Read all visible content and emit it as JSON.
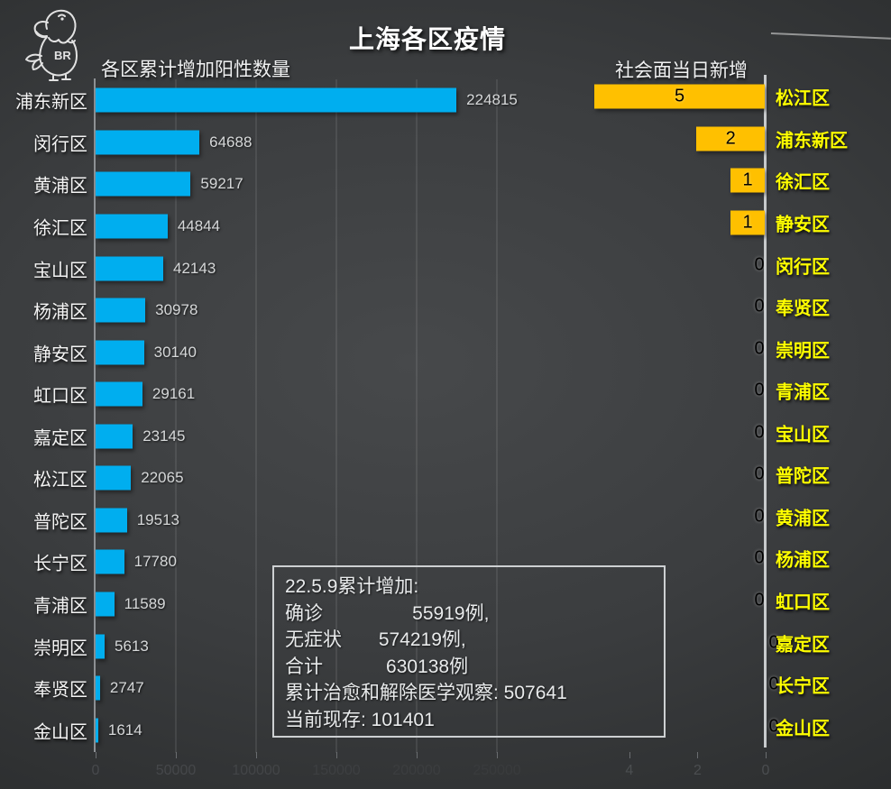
{
  "page": {
    "title": "上海各区疫情",
    "logo_text": "BR"
  },
  "info_box": {
    "lines": [
      "22.5.9累计增加:",
      "确诊                 55919例,",
      "无症状       574219例,",
      "合计            630138例",
      "累计治愈和解除医学观察: 507641",
      "当前现存: 101401"
    ]
  },
  "colors": {
    "background_dark": "#2b2d2e",
    "left_bar": "#00AEEF",
    "right_bar": "#FFC000",
    "left_label": "#F4F4F4",
    "right_label": "#FFFF00",
    "axis_line": "#C7CACC",
    "value_label_left": "#D6D8D9",
    "value_label_right": "#000000"
  },
  "chart_data": [
    {
      "type": "bar",
      "orientation": "horizontal",
      "title": "各区累计增加阳性数量",
      "categories": [
        "浦东新区",
        "闵行区",
        "黄浦区",
        "徐汇区",
        "宝山区",
        "杨浦区",
        "静安区",
        "虹口区",
        "嘉定区",
        "松江区",
        "普陀区",
        "长宁区",
        "青浦区",
        "崇明区",
        "奉贤区",
        "金山区"
      ],
      "values": [
        224815,
        64688,
        59217,
        44844,
        42143,
        30978,
        30140,
        29161,
        23145,
        22065,
        19513,
        17780,
        11589,
        5613,
        2747,
        1614
      ],
      "xlim": [
        0,
        250000
      ],
      "x_ticks": [
        0,
        50000,
        100000,
        150000,
        200000,
        250000
      ],
      "bar_color": "#00AEEF",
      "label_color": "#F4F4F4",
      "grid": true,
      "value_labels": "outside-end"
    },
    {
      "type": "bar",
      "orientation": "horizontal-right-to-left",
      "title": "社会面当日新增",
      "categories": [
        "松江区",
        "浦东新区",
        "徐汇区",
        "静安区",
        "闵行区",
        "奉贤区",
        "崇明区",
        "青浦区",
        "宝山区",
        "普陀区",
        "黄浦区",
        "杨浦区",
        "虹口区",
        "嘉定区",
        "长宁区",
        "金山区"
      ],
      "values": [
        5,
        2,
        1,
        1,
        0,
        0,
        0,
        0,
        0,
        0,
        0,
        0,
        0,
        0,
        0,
        0
      ],
      "xlim": [
        6.4,
        0
      ],
      "x_ticks": [
        4,
        2,
        0
      ],
      "bar_color": "#FFC000",
      "label_color": "#FFFF00",
      "grid": false,
      "value_labels": "inside-end"
    }
  ]
}
